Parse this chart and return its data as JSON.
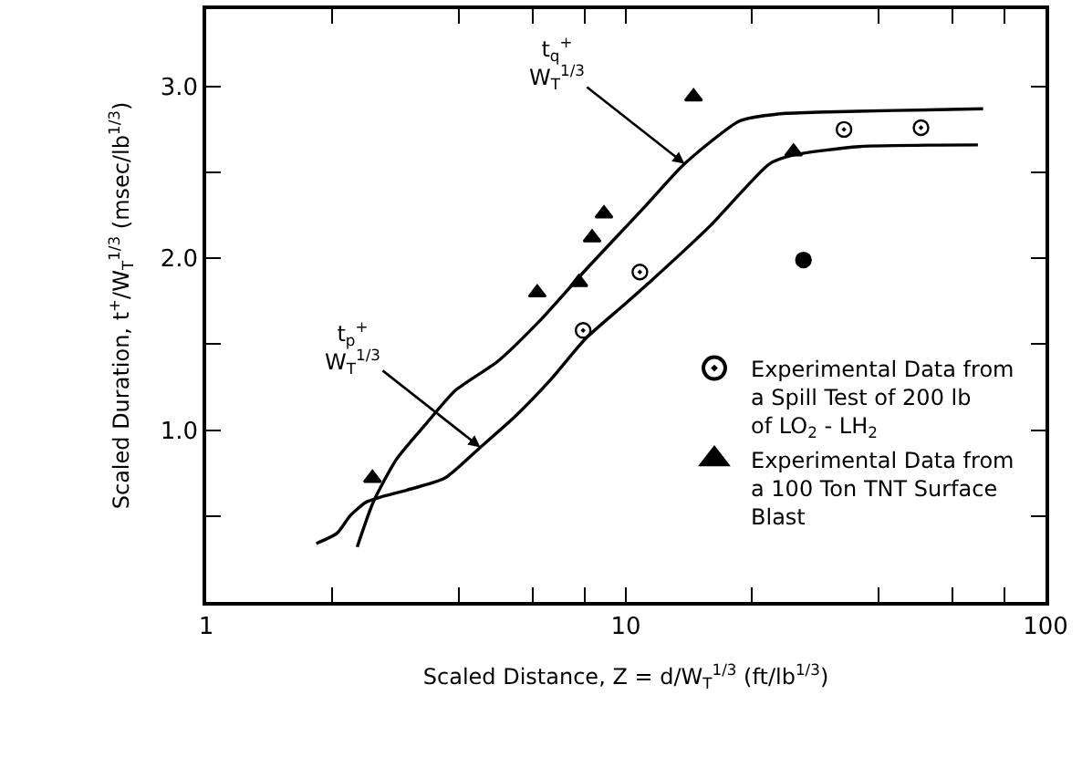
{
  "chart_data": {
    "type": "line",
    "xlabel": "Scaled Distance, Z = d/W$_{T}$$^{1/3}$ (ft/lb$^{1/3}$)",
    "ylabel": "Scaled Duration, t$^{+}$/W$_{T}$$^{1/3}$ (msec/lb$^{1/3}$)",
    "log": "x",
    "grid": false,
    "legend": "bottom right",
    "xlim": [
      1,
      100
    ],
    "xticks": [
      1,
      {
        "value": 2,
        "label": null
      },
      {
        "value": 4,
        "label": null
      },
      {
        "value": 6,
        "label": null
      },
      {
        "value": 8,
        "label": null
      },
      10,
      {
        "value": 20,
        "label": null
      },
      {
        "value": 40,
        "label": null
      },
      {
        "value": 60,
        "label": null
      },
      {
        "value": 80,
        "label": null
      },
      100
    ],
    "ylim": [
      0,
      3.45
    ],
    "yticks": [
      {
        "value": 0.5,
        "label": null
      },
      {
        "value": 1,
        "label": "1.0"
      },
      {
        "value": 1.5,
        "label": null
      },
      {
        "value": 2,
        "label": "2.0"
      },
      {
        "value": 2.5,
        "label": null
      },
      {
        "value": 3,
        "label": "3.0"
      }
    ],
    "series": [
      {
        "color": "#000000",
        "line_style": "solid",
        "marker": "none",
        "x": [
          1.83,
          2.05,
          2.2,
          2.4,
          2.6,
          3.0,
          3.7,
          4.5,
          5.45,
          6.6,
          8.0,
          9.8,
          11.5,
          15.9,
          22,
          25,
          36,
          69
        ],
        "values": [
          0.34,
          0.4,
          0.5,
          0.58,
          0.61,
          0.65,
          0.72,
          0.9,
          1.08,
          1.29,
          1.53,
          1.72,
          1.87,
          2.19,
          2.55,
          2.6,
          2.65,
          2.66
        ]
      },
      {
        "color": "#000000",
        "line_style": "solid",
        "marker": "none",
        "x": [
          2.29,
          2.5,
          2.84,
          3.35,
          3.92,
          4.95,
          6.2,
          8.07,
          11.1,
          13.8,
          18.7,
          23.1,
          28.7,
          43.6,
          71
        ],
        "values": [
          0.32,
          0.58,
          0.83,
          1.04,
          1.23,
          1.4,
          1.63,
          1.94,
          2.3,
          2.55,
          2.8,
          2.84,
          2.85,
          2.86,
          2.87
        ]
      },
      {
        "type": "scatter",
        "name": "Experimental Data from a Spill Test of 200 lb of LO$_{2}$ - LH$_{2}$",
        "color": "#000000",
        "marker": "circle-dot",
        "x": [
          7.91,
          10.8,
          33.1,
          50.5
        ],
        "values": [
          1.58,
          1.92,
          2.75,
          2.76
        ]
      },
      {
        "type": "scatter",
        "name": "Experimental Data from a 100 Ton TNT Surface Blast",
        "color": "#000000",
        "marker": "triangle",
        "x": [
          2.49,
          6.15,
          7.73,
          8.31,
          8.87,
          14.5,
          25.1
        ],
        "values": [
          0.72,
          1.8,
          1.86,
          2.12,
          2.26,
          2.94,
          2.62
        ]
      },
      {
        "type": "scatter",
        "color": "#000000",
        "marker": "circle",
        "x": [
          26.5
        ],
        "values": [
          1.99
        ]
      }
    ],
    "annotations": [
      {
        "text": "t$_{q}$$^{+}$\nW$_{T}$$^{1/3}$",
        "x": 13.8,
        "y": 2.55
      },
      {
        "text": "t$_{p}$$^{+}$\nW$_{T}$$^{1/3}$",
        "x": 4.5,
        "y": 0.9
      }
    ]
  }
}
